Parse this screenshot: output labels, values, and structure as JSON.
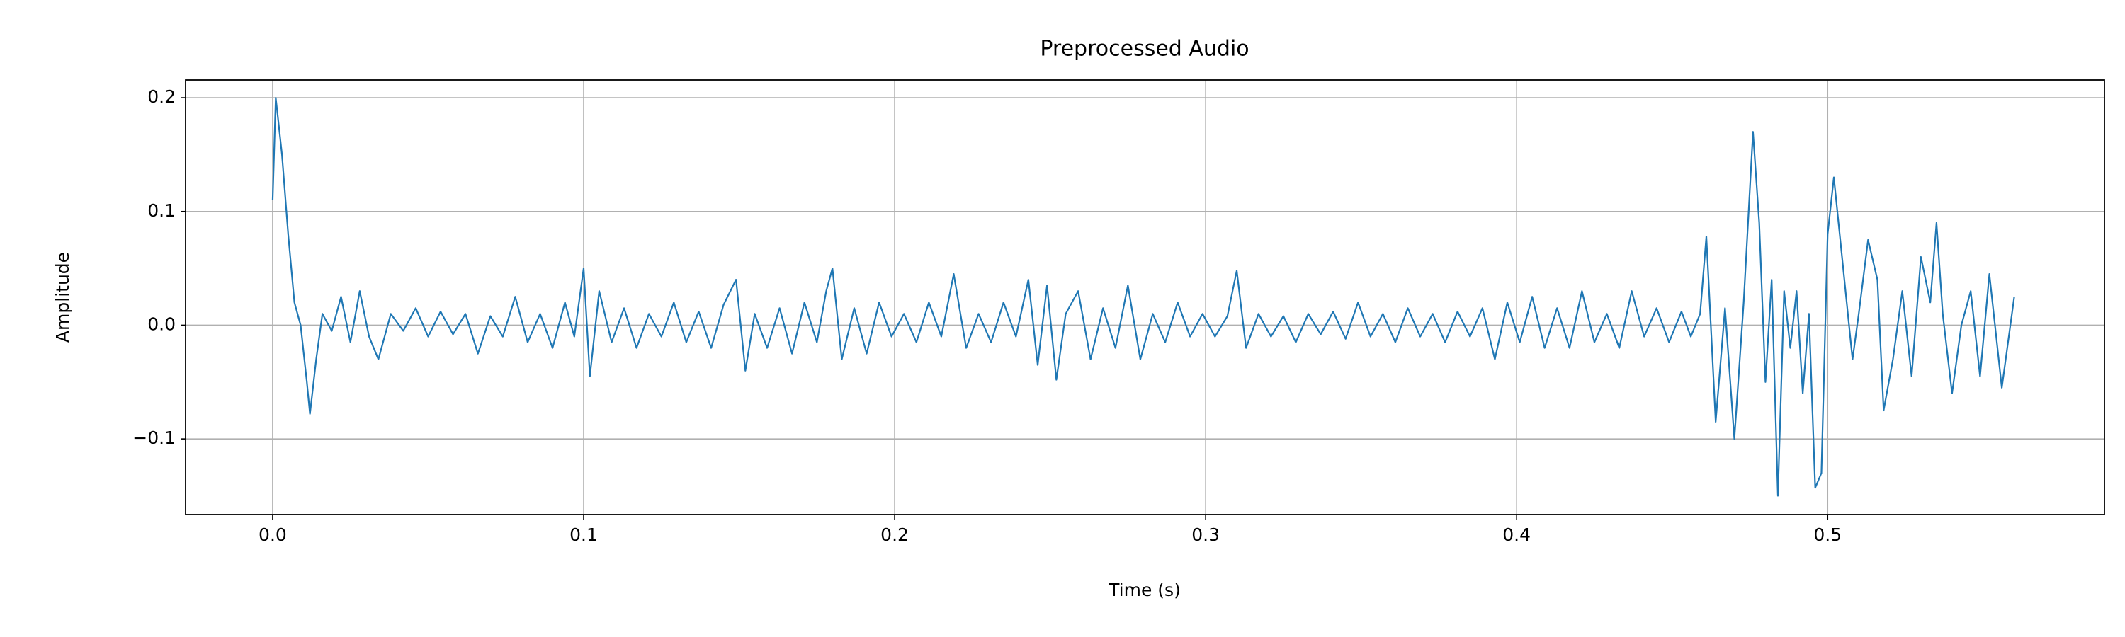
{
  "chart_data": {
    "type": "line",
    "title": "Preprocessed Audio",
    "x_label": "Time (s)",
    "y_label": "Amplitude",
    "x": [
      0,
      0.001,
      0.003,
      0.005,
      0.007,
      0.009,
      0.011,
      0.012,
      0.014,
      0.016,
      0.019,
      0.022,
      0.025,
      0.028,
      0.031,
      0.034,
      0.038,
      0.042,
      0.046,
      0.05,
      0.054,
      0.058,
      0.062,
      0.066,
      0.07,
      0.074,
      0.078,
      0.082,
      0.086,
      0.09,
      0.094,
      0.097,
      0.1,
      0.102,
      0.105,
      0.109,
      0.113,
      0.117,
      0.121,
      0.125,
      0.129,
      0.133,
      0.137,
      0.141,
      0.145,
      0.149,
      0.152,
      0.155,
      0.159,
      0.163,
      0.167,
      0.171,
      0.175,
      0.178,
      0.18,
      0.183,
      0.187,
      0.191,
      0.195,
      0.199,
      0.203,
      0.207,
      0.211,
      0.215,
      0.219,
      0.223,
      0.227,
      0.231,
      0.235,
      0.239,
      0.243,
      0.246,
      0.249,
      0.252,
      0.255,
      0.259,
      0.263,
      0.267,
      0.271,
      0.275,
      0.279,
      0.283,
      0.287,
      0.291,
      0.295,
      0.299,
      0.303,
      0.307,
      0.31,
      0.313,
      0.317,
      0.321,
      0.325,
      0.329,
      0.333,
      0.337,
      0.341,
      0.345,
      0.349,
      0.353,
      0.357,
      0.361,
      0.365,
      0.369,
      0.373,
      0.377,
      0.381,
      0.385,
      0.389,
      0.393,
      0.397,
      0.401,
      0.405,
      0.409,
      0.413,
      0.417,
      0.421,
      0.425,
      0.429,
      0.433,
      0.437,
      0.441,
      0.445,
      0.449,
      0.453,
      0.456,
      0.459,
      0.461,
      0.464,
      0.467,
      0.47,
      0.473,
      0.476,
      0.478,
      0.48,
      0.482,
      0.484,
      0.486,
      0.488,
      0.49,
      0.492,
      0.494,
      0.496,
      0.498,
      0.5,
      0.502,
      0.505,
      0.508,
      0.51,
      0.513,
      0.516,
      0.518,
      0.521,
      0.524,
      0.527,
      0.53,
      0.533,
      0.535,
      0.537,
      0.54,
      0.543,
      0.546,
      0.549,
      0.552,
      0.556,
      0.56
    ],
    "series": [
      {
        "color": "#1f77b4",
        "values": [
          0.11,
          0.2,
          0.15,
          0.08,
          0.02,
          0.0,
          -0.05,
          -0.078,
          -0.03,
          0.01,
          -0.005,
          0.025,
          -0.015,
          0.03,
          -0.01,
          -0.03,
          0.01,
          -0.005,
          0.015,
          -0.01,
          0.012,
          -0.008,
          0.01,
          -0.025,
          0.008,
          -0.01,
          0.025,
          -0.015,
          0.01,
          -0.02,
          0.02,
          -0.01,
          0.05,
          -0.045,
          0.03,
          -0.015,
          0.015,
          -0.02,
          0.01,
          -0.01,
          0.02,
          -0.015,
          0.012,
          -0.02,
          0.018,
          0.04,
          -0.04,
          0.01,
          -0.02,
          0.015,
          -0.025,
          0.02,
          -0.015,
          0.03,
          0.05,
          -0.03,
          0.015,
          -0.025,
          0.02,
          -0.01,
          0.01,
          -0.015,
          0.02,
          -0.01,
          0.045,
          -0.02,
          0.01,
          -0.015,
          0.02,
          -0.01,
          0.04,
          -0.035,
          0.035,
          -0.048,
          0.01,
          0.03,
          -0.03,
          0.015,
          -0.02,
          0.035,
          -0.03,
          0.01,
          -0.015,
          0.02,
          -0.01,
          0.01,
          -0.01,
          0.008,
          0.048,
          -0.02,
          0.01,
          -0.01,
          0.008,
          -0.015,
          0.01,
          -0.008,
          0.012,
          -0.012,
          0.02,
          -0.01,
          0.01,
          -0.015,
          0.015,
          -0.01,
          0.01,
          -0.015,
          0.012,
          -0.01,
          0.015,
          -0.03,
          0.02,
          -0.015,
          0.025,
          -0.02,
          0.015,
          -0.02,
          0.03,
          -0.015,
          0.01,
          -0.02,
          0.03,
          -0.01,
          0.015,
          -0.015,
          0.012,
          -0.01,
          0.01,
          0.078,
          -0.085,
          0.015,
          -0.1,
          0.02,
          0.17,
          0.09,
          -0.05,
          0.04,
          -0.15,
          0.03,
          -0.02,
          0.03,
          -0.06,
          0.01,
          -0.143,
          -0.13,
          0.08,
          0.13,
          0.05,
          -0.03,
          0.01,
          0.075,
          0.04,
          -0.075,
          -0.03,
          0.03,
          -0.045,
          0.06,
          0.02,
          0.09,
          0.01,
          -0.06,
          0.0,
          0.03,
          -0.045,
          0.045,
          -0.055,
          0.025
        ]
      }
    ],
    "xlim": [
      -0.028,
      0.589
    ],
    "ylim": [
      -0.1665,
      0.2156
    ],
    "xticks": [
      {
        "value": 0,
        "label": "0.0"
      },
      0.1,
      0.2,
      0.3,
      0.4,
      0.5
    ],
    "yticks": [
      {
        "value": -0.1,
        "label": "−0.1"
      },
      {
        "value": 0,
        "label": "0.0"
      },
      0.1,
      0.2
    ],
    "grid": true
  }
}
